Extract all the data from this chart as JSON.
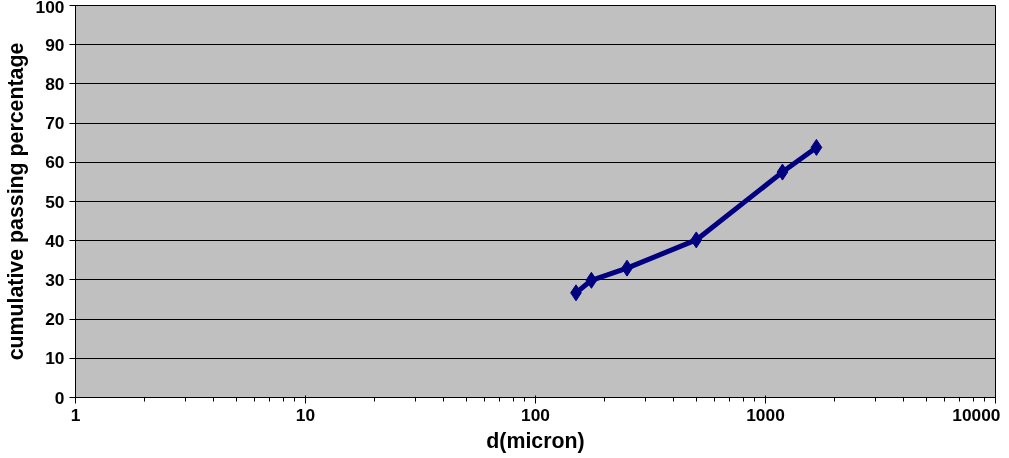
{
  "chart_data": {
    "type": "line",
    "xlabel": "d(micron)",
    "ylabel": "cumulative passing percentage",
    "x": [
      150,
      175,
      250,
      500,
      1185,
      1665
    ],
    "series": [
      {
        "color": "#000080",
        "values": [
          26.7,
          29.9,
          33.0,
          40.2,
          57.5,
          63.8
        ]
      }
    ],
    "log": "x",
    "xlim": [
      1,
      10000
    ],
    "xticks": [
      1,
      10,
      100,
      1000,
      10000
    ],
    "ylim": [
      0,
      100
    ],
    "yticks": [
      0,
      10,
      20,
      30,
      40,
      50,
      60,
      70,
      80,
      90,
      100
    ],
    "grid": "y",
    "marker": "diamond",
    "line_style": "solid"
  }
}
